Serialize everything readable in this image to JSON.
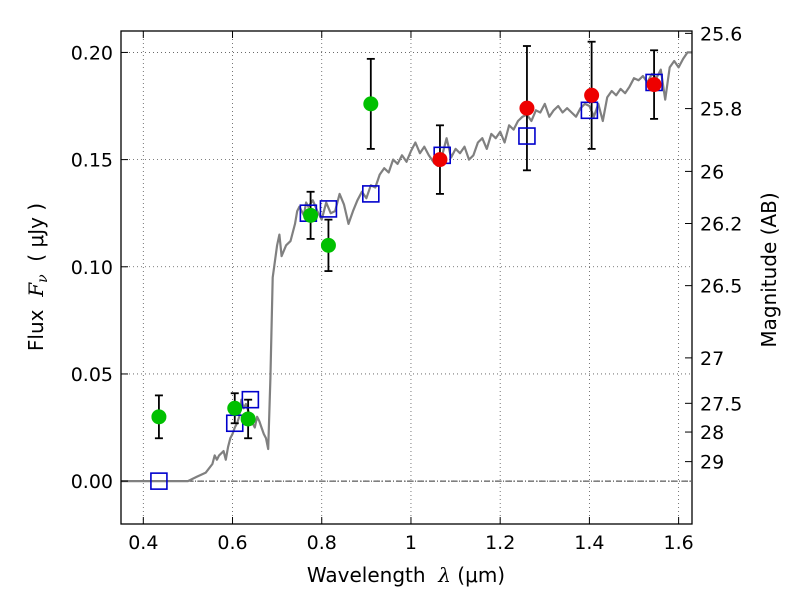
{
  "chart_data": {
    "type": "scatter",
    "xlabel": {
      "prefix": "Wavelength  ",
      "symbol": "λ",
      "unit": " (μm)"
    },
    "ylabel": {
      "prefix": "Flux  ",
      "symbol": "F",
      "subscript": "ν",
      "unit": "  ( μJy )"
    },
    "y2label": "Magnitude (AB)",
    "xlim": [
      0.35,
      1.63
    ],
    "ylim": [
      -0.02,
      0.21
    ],
    "x_ticks": [
      0.4,
      0.6,
      0.8,
      1.0,
      1.2,
      1.4,
      1.6
    ],
    "x_tick_labels": [
      "0.4",
      "0.6",
      "0.8",
      "1",
      "1.2",
      "1.4",
      "1.6"
    ],
    "y_ticks": [
      0.0,
      0.05,
      0.1,
      0.15,
      0.2
    ],
    "y_tick_labels": [
      "0.00",
      "0.05",
      "0.10",
      "0.15",
      "0.20"
    ],
    "y2_ticks": [
      {
        "flux": 0.2089,
        "label": "25.6"
      },
      {
        "flux": 0.1738,
        "label": "25.8"
      },
      {
        "flux": 0.1445,
        "label": "26"
      },
      {
        "flux": 0.1202,
        "label": "26.2"
      },
      {
        "flux": 0.0912,
        "label": "26.5"
      },
      {
        "flux": 0.0575,
        "label": "27"
      },
      {
        "flux": 0.0363,
        "label": "27.5"
      },
      {
        "flux": 0.0229,
        "label": "28"
      },
      {
        "flux": 0.0091,
        "label": "29"
      }
    ],
    "grid": true,
    "zero_line": true,
    "colors": {
      "template": "#808080",
      "model_marker": "#0000cc",
      "obs_green": "#00c000",
      "obs_red": "#ee0000",
      "errorbar": "#000000"
    },
    "series": [
      {
        "kind": "line",
        "points": [
          [
            0.35,
            0.0
          ],
          [
            0.5,
            0.0
          ],
          [
            0.52,
            0.002
          ],
          [
            0.54,
            0.004
          ],
          [
            0.555,
            0.008
          ],
          [
            0.56,
            0.012
          ],
          [
            0.565,
            0.01
          ],
          [
            0.57,
            0.012
          ],
          [
            0.58,
            0.014
          ],
          [
            0.585,
            0.01
          ],
          [
            0.59,
            0.016
          ],
          [
            0.595,
            0.02
          ],
          [
            0.6,
            0.022
          ],
          [
            0.605,
            0.025
          ],
          [
            0.61,
            0.027
          ],
          [
            0.615,
            0.03
          ],
          [
            0.62,
            0.038
          ],
          [
            0.625,
            0.034
          ],
          [
            0.63,
            0.036
          ],
          [
            0.635,
            0.033
          ],
          [
            0.64,
            0.03
          ],
          [
            0.645,
            0.027
          ],
          [
            0.65,
            0.025
          ],
          [
            0.655,
            0.03
          ],
          [
            0.66,
            0.028
          ],
          [
            0.665,
            0.025
          ],
          [
            0.67,
            0.022
          ],
          [
            0.675,
            0.02
          ],
          [
            0.68,
            0.015
          ],
          [
            0.685,
            0.048
          ],
          [
            0.69,
            0.095
          ],
          [
            0.7,
            0.11
          ],
          [
            0.705,
            0.115
          ],
          [
            0.71,
            0.105
          ],
          [
            0.72,
            0.11
          ],
          [
            0.73,
            0.112
          ],
          [
            0.74,
            0.12
          ],
          [
            0.745,
            0.126
          ],
          [
            0.75,
            0.128
          ],
          [
            0.76,
            0.124
          ],
          [
            0.765,
            0.13
          ],
          [
            0.77,
            0.128
          ],
          [
            0.78,
            0.131
          ],
          [
            0.79,
            0.126
          ],
          [
            0.8,
            0.122
          ],
          [
            0.81,
            0.13
          ],
          [
            0.82,
            0.125
          ],
          [
            0.83,
            0.126
          ],
          [
            0.84,
            0.134
          ],
          [
            0.85,
            0.129
          ],
          [
            0.86,
            0.12
          ],
          [
            0.87,
            0.126
          ],
          [
            0.88,
            0.131
          ],
          [
            0.89,
            0.135
          ],
          [
            0.9,
            0.132
          ],
          [
            0.91,
            0.138
          ],
          [
            0.92,
            0.137
          ],
          [
            0.93,
            0.143
          ],
          [
            0.94,
            0.146
          ],
          [
            0.95,
            0.144
          ],
          [
            0.96,
            0.15
          ],
          [
            0.97,
            0.148
          ],
          [
            0.98,
            0.152
          ],
          [
            0.99,
            0.149
          ],
          [
            1.0,
            0.154
          ],
          [
            1.01,
            0.158
          ],
          [
            1.02,
            0.153
          ],
          [
            1.03,
            0.156
          ],
          [
            1.04,
            0.152
          ],
          [
            1.05,
            0.149
          ],
          [
            1.06,
            0.147
          ],
          [
            1.07,
            0.152
          ],
          [
            1.08,
            0.16
          ],
          [
            1.09,
            0.151
          ],
          [
            1.1,
            0.155
          ],
          [
            1.11,
            0.153
          ],
          [
            1.12,
            0.156
          ],
          [
            1.13,
            0.15
          ],
          [
            1.14,
            0.152
          ],
          [
            1.15,
            0.158
          ],
          [
            1.16,
            0.16
          ],
          [
            1.17,
            0.155
          ],
          [
            1.18,
            0.162
          ],
          [
            1.19,
            0.16
          ],
          [
            1.2,
            0.163
          ],
          [
            1.21,
            0.158
          ],
          [
            1.22,
            0.166
          ],
          [
            1.23,
            0.164
          ],
          [
            1.24,
            0.168
          ],
          [
            1.25,
            0.17
          ],
          [
            1.26,
            0.171
          ],
          [
            1.27,
            0.168
          ],
          [
            1.28,
            0.173
          ],
          [
            1.29,
            0.172
          ],
          [
            1.3,
            0.176
          ],
          [
            1.31,
            0.17
          ],
          [
            1.32,
            0.173
          ],
          [
            1.33,
            0.175
          ],
          [
            1.34,
            0.172
          ],
          [
            1.35,
            0.174
          ],
          [
            1.36,
            0.172
          ],
          [
            1.37,
            0.17
          ],
          [
            1.38,
            0.174
          ],
          [
            1.39,
            0.176
          ],
          [
            1.4,
            0.175
          ],
          [
            1.41,
            0.17
          ],
          [
            1.42,
            0.176
          ],
          [
            1.43,
            0.168
          ],
          [
            1.44,
            0.179
          ],
          [
            1.45,
            0.182
          ],
          [
            1.46,
            0.18
          ],
          [
            1.47,
            0.183
          ],
          [
            1.48,
            0.181
          ],
          [
            1.49,
            0.184
          ],
          [
            1.5,
            0.188
          ],
          [
            1.51,
            0.187
          ],
          [
            1.52,
            0.189
          ],
          [
            1.53,
            0.186
          ],
          [
            1.54,
            0.19
          ],
          [
            1.55,
            0.188
          ],
          [
            1.56,
            0.192
          ],
          [
            1.57,
            0.178
          ],
          [
            1.58,
            0.193
          ],
          [
            1.59,
            0.196
          ],
          [
            1.6,
            0.193
          ],
          [
            1.61,
            0.197
          ],
          [
            1.62,
            0.2
          ],
          [
            1.63,
            0.2
          ]
        ]
      },
      {
        "kind": "model_points",
        "points": [
          [
            0.435,
            0.0
          ],
          [
            0.605,
            0.027
          ],
          [
            0.64,
            0.038
          ],
          [
            0.77,
            0.125
          ],
          [
            0.815,
            0.127
          ],
          [
            0.91,
            0.134
          ],
          [
            1.07,
            0.152
          ],
          [
            1.26,
            0.161
          ],
          [
            1.4,
            0.173
          ],
          [
            1.545,
            0.186
          ]
        ]
      },
      {
        "kind": "observations",
        "points": [
          {
            "x": 0.435,
            "y": 0.03,
            "err": 0.01,
            "color": "green"
          },
          {
            "x": 0.605,
            "y": 0.034,
            "err": 0.007,
            "color": "green"
          },
          {
            "x": 0.635,
            "y": 0.029,
            "err": 0.009,
            "color": "green"
          },
          {
            "x": 0.775,
            "y": 0.124,
            "err": 0.011,
            "color": "green"
          },
          {
            "x": 0.815,
            "y": 0.11,
            "err": 0.012,
            "color": "green"
          },
          {
            "x": 0.91,
            "y": 0.176,
            "err": 0.021,
            "color": "green"
          },
          {
            "x": 1.065,
            "y": 0.15,
            "err": 0.016,
            "color": "red"
          },
          {
            "x": 1.26,
            "y": 0.174,
            "err": 0.029,
            "color": "red"
          },
          {
            "x": 1.405,
            "y": 0.18,
            "err": 0.025,
            "color": "red"
          },
          {
            "x": 1.545,
            "y": 0.185,
            "err": 0.016,
            "color": "red"
          }
        ]
      }
    ]
  }
}
